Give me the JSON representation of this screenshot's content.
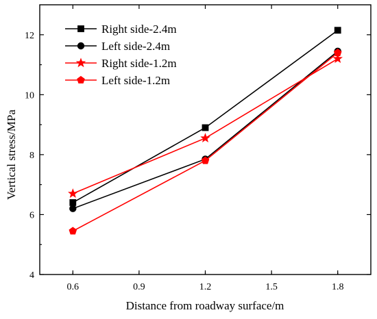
{
  "chart_data": {
    "type": "line",
    "xlabel": "Distance from roadway surface/m",
    "ylabel": "Vertical stress/MPa",
    "xlim": [
      0.45,
      1.95
    ],
    "ylim": [
      4,
      13
    ],
    "xticks": [
      "0.6",
      "0.9",
      "1.2",
      "1.5",
      "1.8"
    ],
    "yticks": [
      "4",
      "6",
      "8",
      "10",
      "12"
    ],
    "grid": false,
    "legend_position": "top-left",
    "x": [
      0.6,
      1.2,
      1.8
    ],
    "series": [
      {
        "name": "Right side-2.4m",
        "values": [
          6.4,
          8.9,
          12.15
        ],
        "color": "#000000",
        "marker": "square"
      },
      {
        "name": "Left side-2.4m",
        "values": [
          6.2,
          7.85,
          11.45
        ],
        "color": "#000000",
        "marker": "circle"
      },
      {
        "name": "Right side-1.2m",
        "values": [
          6.7,
          8.55,
          11.2
        ],
        "color": "#ff0000",
        "marker": "star"
      },
      {
        "name": "Left side-1.2m",
        "values": [
          5.45,
          7.8,
          11.4
        ],
        "color": "#ff0000",
        "marker": "pentagon"
      }
    ]
  }
}
